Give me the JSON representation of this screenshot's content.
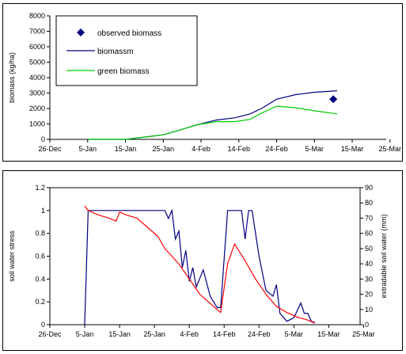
{
  "chart_data": [
    {
      "type": "line",
      "ylabel": "biomass (kg/ha)",
      "xlabel": "",
      "ylim": [
        0,
        8000
      ],
      "yticks": [
        0,
        1000,
        2000,
        3000,
        4000,
        5000,
        6000,
        7000,
        8000
      ],
      "xlim": [
        "2000-12-26",
        "2001-03-25"
      ],
      "x_tick_labels": [
        "26-Dec",
        "5-Jan",
        "15-Jan",
        "25-Jan",
        "4-Feb",
        "14-Feb",
        "24-Feb",
        "5-Mar",
        "15-Mar",
        "25-Mar"
      ],
      "legend_placement": "top-left",
      "grid": false,
      "series": [
        {
          "name": "observed biomass",
          "marker": "diamond",
          "color": "#000080",
          "points": [
            {
              "x": "2001-03-11",
              "y": 2600
            }
          ]
        },
        {
          "name": "biomassm",
          "color": "#000080",
          "points": [
            {
              "x": "2001-01-05",
              "y": 0
            },
            {
              "x": "2001-01-15",
              "y": 0
            },
            {
              "x": "2001-01-20",
              "y": 150
            },
            {
              "x": "2001-01-25",
              "y": 300
            },
            {
              "x": "2001-01-30",
              "y": 650
            },
            {
              "x": "2001-02-03",
              "y": 950
            },
            {
              "x": "2001-02-08",
              "y": 1250
            },
            {
              "x": "2001-02-13",
              "y": 1400
            },
            {
              "x": "2001-02-17",
              "y": 1650
            },
            {
              "x": "2001-02-20",
              "y": 2000
            },
            {
              "x": "2001-02-24",
              "y": 2600
            },
            {
              "x": "2001-03-01",
              "y": 2900
            },
            {
              "x": "2001-03-06",
              "y": 3050
            },
            {
              "x": "2001-03-12",
              "y": 3150
            }
          ]
        },
        {
          "name": "green biomass",
          "color": "#00cc00",
          "points": [
            {
              "x": "2001-01-05",
              "y": 0
            },
            {
              "x": "2001-01-15",
              "y": 0
            },
            {
              "x": "2001-01-20",
              "y": 150
            },
            {
              "x": "2001-01-25",
              "y": 300
            },
            {
              "x": "2001-01-30",
              "y": 650
            },
            {
              "x": "2001-02-03",
              "y": 950
            },
            {
              "x": "2001-02-08",
              "y": 1150
            },
            {
              "x": "2001-02-13",
              "y": 1150
            },
            {
              "x": "2001-02-17",
              "y": 1300
            },
            {
              "x": "2001-02-20",
              "y": 1700
            },
            {
              "x": "2001-02-24",
              "y": 2150
            },
            {
              "x": "2001-03-01",
              "y": 2050
            },
            {
              "x": "2001-03-06",
              "y": 1850
            },
            {
              "x": "2001-03-12",
              "y": 1650
            }
          ]
        }
      ]
    },
    {
      "type": "line",
      "ylabel": "soil water stress",
      "ylabel_right": "extradable soil water (mm)",
      "xlabel": "",
      "ylim": [
        0,
        1.2
      ],
      "yticks": [
        0,
        0.2,
        0.4,
        0.6,
        0.8,
        1,
        1.2
      ],
      "ylim_right": [
        0,
        90
      ],
      "yticks_right": [
        0,
        10,
        20,
        30,
        40,
        50,
        60,
        70,
        80,
        90
      ],
      "xlim": [
        "2000-12-26",
        "2001-03-25"
      ],
      "x_tick_labels": [
        "26-Dec",
        "5-Jan",
        "15-Jan",
        "25-Jan",
        "4-Feb",
        "14-Feb",
        "24-Feb",
        "5-Mar",
        "15-Mar",
        "25-Mar"
      ],
      "grid": false,
      "series": [
        {
          "axis": "left",
          "color": "#000080",
          "points": [
            {
              "x": "2001-01-05",
              "y": 0
            },
            {
              "x": "2001-01-06",
              "y": 1.0
            },
            {
              "x": "2001-01-28",
              "y": 1.0
            },
            {
              "x": "2001-01-29",
              "y": 0.93
            },
            {
              "x": "2001-01-30",
              "y": 1.0
            },
            {
              "x": "2001-01-31",
              "y": 0.75
            },
            {
              "x": "2001-02-01",
              "y": 0.82
            },
            {
              "x": "2001-02-02",
              "y": 0.5
            },
            {
              "x": "2001-02-03",
              "y": 0.65
            },
            {
              "x": "2001-02-04",
              "y": 0.38
            },
            {
              "x": "2001-02-05",
              "y": 0.5
            },
            {
              "x": "2001-02-06",
              "y": 0.33
            },
            {
              "x": "2001-02-08",
              "y": 0.48
            },
            {
              "x": "2001-02-10",
              "y": 0.25
            },
            {
              "x": "2001-02-12",
              "y": 0.15
            },
            {
              "x": "2001-02-13",
              "y": 0.15
            },
            {
              "x": "2001-02-15",
              "y": 1.0
            },
            {
              "x": "2001-02-19",
              "y": 1.0
            },
            {
              "x": "2001-02-20",
              "y": 0.75
            },
            {
              "x": "2001-02-21",
              "y": 1.0
            },
            {
              "x": "2001-02-22",
              "y": 1.0
            },
            {
              "x": "2001-02-24",
              "y": 0.6
            },
            {
              "x": "2001-02-26",
              "y": 0.3
            },
            {
              "x": "2001-02-28",
              "y": 0.25
            },
            {
              "x": "2001-03-01",
              "y": 0.35
            },
            {
              "x": "2001-03-02",
              "y": 0.1
            },
            {
              "x": "2001-03-04",
              "y": 0.03
            },
            {
              "x": "2001-03-06",
              "y": 0.06
            },
            {
              "x": "2001-03-08",
              "y": 0.19
            },
            {
              "x": "2001-03-09",
              "y": 0.1
            },
            {
              "x": "2001-03-10",
              "y": 0.1
            },
            {
              "x": "2001-03-11",
              "y": 0.03
            },
            {
              "x": "2001-03-12",
              "y": 0.02
            }
          ]
        },
        {
          "axis": "right",
          "color": "#ff0000",
          "points": [
            {
              "x": "2001-01-05",
              "y": 78
            },
            {
              "x": "2001-01-06",
              "y": 75
            },
            {
              "x": "2001-01-09",
              "y": 72
            },
            {
              "x": "2001-01-12",
              "y": 70
            },
            {
              "x": "2001-01-14",
              "y": 68
            },
            {
              "x": "2001-01-15",
              "y": 74
            },
            {
              "x": "2001-01-17",
              "y": 72
            },
            {
              "x": "2001-01-20",
              "y": 70
            },
            {
              "x": "2001-01-23",
              "y": 64
            },
            {
              "x": "2001-01-26",
              "y": 58
            },
            {
              "x": "2001-01-28",
              "y": 50
            },
            {
              "x": "2001-02-01",
              "y": 40
            },
            {
              "x": "2001-02-04",
              "y": 30
            },
            {
              "x": "2001-02-07",
              "y": 20
            },
            {
              "x": "2001-02-10",
              "y": 14
            },
            {
              "x": "2001-02-13",
              "y": 8
            },
            {
              "x": "2001-02-15",
              "y": 40
            },
            {
              "x": "2001-02-17",
              "y": 53
            },
            {
              "x": "2001-02-20",
              "y": 42
            },
            {
              "x": "2001-02-23",
              "y": 30
            },
            {
              "x": "2001-02-26",
              "y": 20
            },
            {
              "x": "2001-03-01",
              "y": 12
            },
            {
              "x": "2001-03-04",
              "y": 8
            },
            {
              "x": "2001-03-07",
              "y": 5
            },
            {
              "x": "2001-03-10",
              "y": 3
            },
            {
              "x": "2001-03-12",
              "y": 1
            }
          ]
        }
      ]
    }
  ]
}
